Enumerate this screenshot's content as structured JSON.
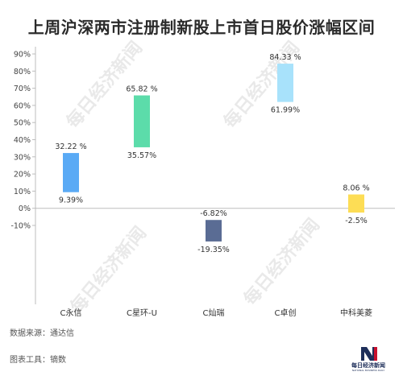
{
  "title": "上周沪深两市注册制新股上市首日股价涨幅区间",
  "footer": {
    "source": "数据来源：通达信",
    "tool": "图表工具：镝数"
  },
  "logo": {
    "text": "每日经济新闻",
    "sub": "NATIONAL BUSINESS DAILY",
    "colors": [
      "#c8102e",
      "#1e2f5a"
    ]
  },
  "chart_data": {
    "type": "bar",
    "subtype": "floating-range",
    "title": "上周沪深两市注册制新股上市首日股价涨幅区间",
    "xlabel": "",
    "ylabel": "",
    "ylim": [
      -10,
      90
    ],
    "yticks": [
      90,
      80,
      70,
      60,
      50,
      40,
      30,
      20,
      10,
      0,
      -10
    ],
    "ytick_labels": [
      "90%",
      "80%",
      "70%",
      "60%",
      "50%",
      "40%",
      "30%",
      "20%",
      "10%",
      "0%",
      "-10%"
    ],
    "grid": false,
    "legend": "none",
    "categories": [
      "C永信",
      "C星环-U",
      "C灿瑞",
      "C卓创",
      "中科美菱"
    ],
    "ranges": [
      {
        "category": "C永信",
        "low": 9.39,
        "high": 32.22,
        "low_label": "9.39%",
        "high_label": "32.22 %",
        "color": "#5aaaf5"
      },
      {
        "category": "C星环-U",
        "low": 35.57,
        "high": 65.82,
        "low_label": "35.57%",
        "high_label": "65.82 %",
        "color": "#5cdcaa"
      },
      {
        "category": "C灿瑞",
        "low": -19.35,
        "high": -6.82,
        "low_label": "-19.35%",
        "high_label": "-6.82%",
        "color": "#5a6c94"
      },
      {
        "category": "C卓创",
        "low": 61.99,
        "high": 84.33,
        "low_label": "61.99%",
        "high_label": "84.33 %",
        "color": "#a8e2fb"
      },
      {
        "category": "中科美菱",
        "low": -2.5,
        "high": 8.06,
        "low_label": "-2.5%",
        "high_label": "8.06 %",
        "color": "#fddd55"
      }
    ],
    "watermark": "每日经济新闻"
  }
}
